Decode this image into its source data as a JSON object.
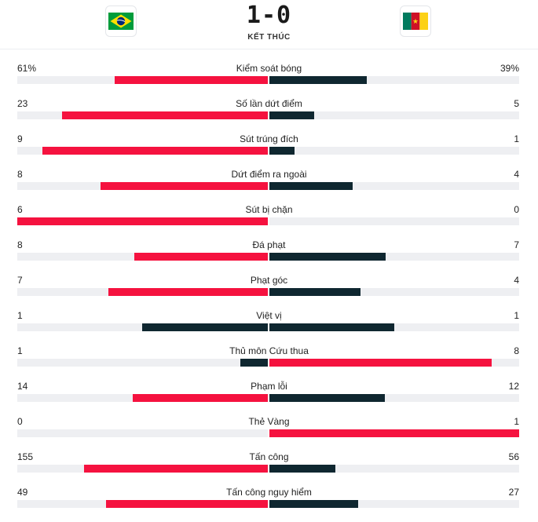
{
  "match": {
    "score": "1-0",
    "status": "KẾT THÚC",
    "home_flag_icon": "brazil-flag-icon",
    "away_flag_icon": "cameroon-flag-icon"
  },
  "colors": {
    "leading": "#f5123f",
    "trailing": "#0f2730",
    "track": "#eeeff2"
  },
  "stats": [
    {
      "label": "Kiểm soát bóng",
      "home": "61%",
      "away": "39%",
      "home_value": 61,
      "away_value": 39
    },
    {
      "label": "Số lần dứt điểm",
      "home": "23",
      "away": "5",
      "home_value": 23,
      "away_value": 5
    },
    {
      "label": "Sút trúng đích",
      "home": "9",
      "away": "1",
      "home_value": 9,
      "away_value": 1
    },
    {
      "label": "Dứt điểm ra ngoài",
      "home": "8",
      "away": "4",
      "home_value": 8,
      "away_value": 4
    },
    {
      "label": "Sút bị chặn",
      "home": "6",
      "away": "0",
      "home_value": 6,
      "away_value": 0
    },
    {
      "label": "Đá phạt",
      "home": "8",
      "away": "7",
      "home_value": 8,
      "away_value": 7
    },
    {
      "label": "Phạt góc",
      "home": "7",
      "away": "4",
      "home_value": 7,
      "away_value": 4
    },
    {
      "label": "Việt vị",
      "home": "1",
      "away": "1",
      "home_value": 1,
      "away_value": 1
    },
    {
      "label": "Thủ môn Cứu thua",
      "home": "1",
      "away": "8",
      "home_value": 1,
      "away_value": 8
    },
    {
      "label": "Phạm lỗi",
      "home": "14",
      "away": "12",
      "home_value": 14,
      "away_value": 12
    },
    {
      "label": "Thẻ Vàng",
      "home": "0",
      "away": "1",
      "home_value": 0,
      "away_value": 1
    },
    {
      "label": "Tấn công",
      "home": "155",
      "away": "56",
      "home_value": 155,
      "away_value": 56
    },
    {
      "label": "Tấn công nguy hiểm",
      "home": "49",
      "away": "27",
      "home_value": 49,
      "away_value": 27
    }
  ]
}
